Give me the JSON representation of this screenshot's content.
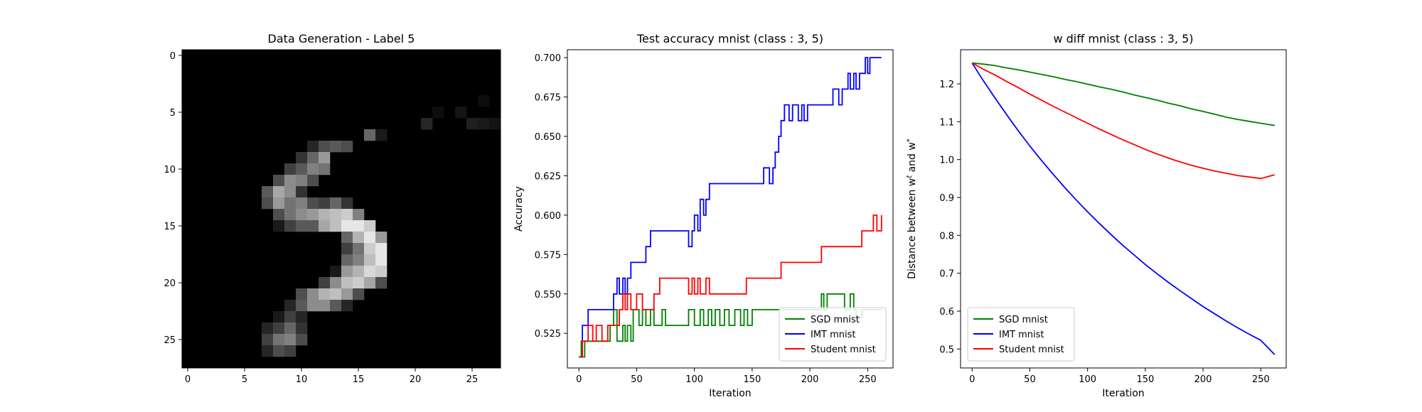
{
  "chart_data": [
    {
      "type": "heatmap",
      "title": "Data Generation - Label 5",
      "colormap": "gray",
      "rows": 28,
      "cols": 28,
      "xticks": [
        0,
        5,
        10,
        15,
        20,
        25
      ],
      "yticks": [
        0,
        5,
        10,
        15,
        20,
        25
      ],
      "pixels": [
        [
          6,
          21,
          0.15
        ],
        [
          5,
          24,
          0.08
        ],
        [
          6,
          25,
          0.12
        ],
        [
          6,
          26,
          0.1
        ],
        [
          6,
          27,
          0.08
        ],
        [
          4,
          26,
          0.05
        ],
        [
          5,
          22,
          0.05
        ],
        [
          7,
          16,
          0.4
        ],
        [
          7,
          17,
          0.1
        ],
        [
          8,
          11,
          0.15
        ],
        [
          8,
          12,
          0.3
        ],
        [
          8,
          13,
          0.35
        ],
        [
          8,
          14,
          0.3
        ],
        [
          9,
          10,
          0.2
        ],
        [
          9,
          11,
          0.4
        ],
        [
          9,
          12,
          0.6
        ],
        [
          10,
          9,
          0.25
        ],
        [
          10,
          10,
          0.35
        ],
        [
          10,
          11,
          0.5
        ],
        [
          10,
          12,
          0.45
        ],
        [
          11,
          8,
          0.3
        ],
        [
          11,
          9,
          0.55
        ],
        [
          11,
          10,
          0.5
        ],
        [
          11,
          11,
          0.3
        ],
        [
          12,
          7,
          0.35
        ],
        [
          12,
          8,
          0.65
        ],
        [
          12,
          9,
          0.55
        ],
        [
          12,
          10,
          0.2
        ],
        [
          13,
          7,
          0.3
        ],
        [
          13,
          8,
          0.6
        ],
        [
          13,
          9,
          0.45
        ],
        [
          13,
          10,
          0.5
        ],
        [
          13,
          11,
          0.3
        ],
        [
          13,
          12,
          0.25
        ],
        [
          13,
          13,
          0.4
        ],
        [
          13,
          14,
          0.2
        ],
        [
          14,
          8,
          0.3
        ],
        [
          14,
          9,
          0.45
        ],
        [
          14,
          10,
          0.55
        ],
        [
          14,
          11,
          0.6
        ],
        [
          14,
          12,
          0.7
        ],
        [
          14,
          13,
          0.75
        ],
        [
          14,
          14,
          0.8
        ],
        [
          14,
          15,
          0.5
        ],
        [
          15,
          8,
          0.1
        ],
        [
          15,
          9,
          0.25
        ],
        [
          15,
          10,
          0.35
        ],
        [
          15,
          11,
          0.35
        ],
        [
          15,
          12,
          0.65
        ],
        [
          15,
          13,
          0.75
        ],
        [
          15,
          14,
          0.9
        ],
        [
          15,
          15,
          0.9
        ],
        [
          15,
          16,
          0.8
        ],
        [
          16,
          14,
          0.4
        ],
        [
          16,
          15,
          0.7
        ],
        [
          16,
          16,
          0.9
        ],
        [
          16,
          17,
          0.6
        ],
        [
          17,
          14,
          0.25
        ],
        [
          17,
          15,
          0.45
        ],
        [
          17,
          16,
          0.8
        ],
        [
          17,
          17,
          0.9
        ],
        [
          18,
          14,
          0.4
        ],
        [
          18,
          15,
          0.5
        ],
        [
          18,
          16,
          0.75
        ],
        [
          18,
          17,
          0.9
        ],
        [
          19,
          13,
          0.1
        ],
        [
          19,
          14,
          0.6
        ],
        [
          19,
          15,
          0.7
        ],
        [
          19,
          16,
          0.85
        ],
        [
          19,
          17,
          0.8
        ],
        [
          20,
          12,
          0.25
        ],
        [
          20,
          13,
          0.55
        ],
        [
          20,
          14,
          0.75
        ],
        [
          20,
          15,
          0.8
        ],
        [
          20,
          16,
          0.65
        ],
        [
          20,
          17,
          0.3
        ],
        [
          21,
          10,
          0.3
        ],
        [
          21,
          11,
          0.55
        ],
        [
          21,
          12,
          0.7
        ],
        [
          21,
          13,
          0.75
        ],
        [
          21,
          14,
          0.6
        ],
        [
          21,
          15,
          0.3
        ],
        [
          22,
          9,
          0.15
        ],
        [
          22,
          10,
          0.35
        ],
        [
          22,
          11,
          0.55
        ],
        [
          22,
          12,
          0.55
        ],
        [
          22,
          13,
          0.35
        ],
        [
          22,
          14,
          0.15
        ],
        [
          23,
          8,
          0.1
        ],
        [
          23,
          9,
          0.25
        ],
        [
          23,
          10,
          0.15
        ],
        [
          24,
          7,
          0.15
        ],
        [
          24,
          8,
          0.25
        ],
        [
          24,
          9,
          0.4
        ],
        [
          24,
          10,
          0.2
        ],
        [
          25,
          7,
          0.25
        ],
        [
          25,
          8,
          0.45
        ],
        [
          25,
          9,
          0.5
        ],
        [
          25,
          10,
          0.3
        ],
        [
          26,
          7,
          0.15
        ],
        [
          26,
          8,
          0.3
        ],
        [
          26,
          9,
          0.25
        ]
      ]
    },
    {
      "type": "line",
      "title": "Test accuracy mnist (class : 3, 5)",
      "xlabel": "Iteration",
      "ylabel": "Accuracy",
      "xlim": [
        -10,
        272
      ],
      "ylim": [
        0.503,
        0.705
      ],
      "xticks": [
        0,
        50,
        100,
        150,
        200,
        250
      ],
      "yticks": [
        0.525,
        0.55,
        0.575,
        0.6,
        0.625,
        0.65,
        0.675,
        0.7
      ],
      "ytick_labels": [
        "0.525",
        "0.550",
        "0.575",
        "0.600",
        "0.625",
        "0.650",
        "0.675",
        "0.700"
      ],
      "legend": "lower-right",
      "series": [
        {
          "name": "SGD mnist",
          "color": "#008000",
          "step": true,
          "x": [
            0,
            2,
            3,
            5,
            10,
            20,
            27,
            30,
            33,
            38,
            40,
            42,
            45,
            47,
            52,
            55,
            58,
            62,
            65,
            70,
            72,
            75,
            80,
            90,
            95,
            100,
            105,
            108,
            112,
            115,
            118,
            122,
            126,
            130,
            135,
            140,
            143,
            146,
            150,
            160,
            165,
            170,
            175,
            180,
            190,
            200,
            210,
            212,
            215,
            225,
            230,
            235,
            238,
            240,
            245,
            247,
            250,
            262
          ],
          "y": [
            0.51,
            0.52,
            0.51,
            0.52,
            0.52,
            0.52,
            0.53,
            0.54,
            0.52,
            0.53,
            0.52,
            0.53,
            0.52,
            0.54,
            0.53,
            0.54,
            0.53,
            0.54,
            0.53,
            0.53,
            0.54,
            0.53,
            0.53,
            0.53,
            0.54,
            0.53,
            0.54,
            0.53,
            0.54,
            0.53,
            0.54,
            0.53,
            0.54,
            0.53,
            0.54,
            0.53,
            0.54,
            0.53,
            0.54,
            0.54,
            0.54,
            0.54,
            0.54,
            0.54,
            0.54,
            0.54,
            0.55,
            0.54,
            0.55,
            0.55,
            0.54,
            0.55,
            0.54,
            0.535,
            0.54,
            0.54,
            0.54,
            0.54
          ]
        },
        {
          "name": "IMT mnist",
          "color": "#0000ff",
          "step": true,
          "x": [
            0,
            3,
            8,
            15,
            25,
            30,
            33,
            35,
            38,
            40,
            42,
            45,
            50,
            55,
            58,
            62,
            65,
            70,
            80,
            90,
            95,
            98,
            100,
            103,
            105,
            108,
            110,
            113,
            115,
            120,
            130,
            140,
            145,
            160,
            165,
            168,
            170,
            173,
            175,
            178,
            180,
            182,
            185,
            190,
            193,
            195,
            198,
            200,
            210,
            220,
            225,
            228,
            230,
            233,
            235,
            238,
            240,
            243,
            245,
            248,
            250,
            252,
            255,
            262
          ],
          "y": [
            0.51,
            0.53,
            0.54,
            0.54,
            0.54,
            0.55,
            0.56,
            0.55,
            0.56,
            0.55,
            0.56,
            0.57,
            0.57,
            0.57,
            0.58,
            0.59,
            0.59,
            0.59,
            0.59,
            0.59,
            0.58,
            0.59,
            0.6,
            0.59,
            0.61,
            0.6,
            0.61,
            0.62,
            0.62,
            0.62,
            0.62,
            0.62,
            0.62,
            0.63,
            0.62,
            0.63,
            0.64,
            0.65,
            0.66,
            0.67,
            0.67,
            0.66,
            0.67,
            0.66,
            0.67,
            0.66,
            0.67,
            0.67,
            0.67,
            0.68,
            0.67,
            0.68,
            0.68,
            0.69,
            0.68,
            0.69,
            0.68,
            0.69,
            0.69,
            0.7,
            0.69,
            0.7,
            0.7,
            0.7
          ]
        },
        {
          "name": "Student mnist",
          "color": "#ff0000",
          "step": true,
          "x": [
            0,
            3,
            8,
            12,
            15,
            20,
            25,
            30,
            35,
            38,
            40,
            42,
            45,
            50,
            55,
            60,
            65,
            70,
            75,
            80,
            90,
            95,
            98,
            100,
            103,
            105,
            110,
            113,
            115,
            120,
            130,
            140,
            145,
            150,
            160,
            170,
            175,
            180,
            190,
            200,
            210,
            220,
            230,
            240,
            245,
            250,
            255,
            258,
            262
          ],
          "y": [
            0.51,
            0.52,
            0.53,
            0.52,
            0.53,
            0.52,
            0.53,
            0.53,
            0.54,
            0.55,
            0.54,
            0.55,
            0.54,
            0.55,
            0.54,
            0.54,
            0.55,
            0.56,
            0.56,
            0.56,
            0.56,
            0.55,
            0.56,
            0.55,
            0.56,
            0.55,
            0.56,
            0.55,
            0.55,
            0.55,
            0.55,
            0.55,
            0.56,
            0.56,
            0.56,
            0.56,
            0.57,
            0.57,
            0.57,
            0.57,
            0.58,
            0.58,
            0.58,
            0.58,
            0.59,
            0.59,
            0.6,
            0.59,
            0.6
          ]
        }
      ]
    },
    {
      "type": "line",
      "title": "w diff mnist (class : 3, 5)",
      "xlabel": "Iteration",
      "ylabel": "Distance between w^t and w^*",
      "xlim": [
        -10,
        272
      ],
      "ylim": [
        0.45,
        1.29
      ],
      "xticks": [
        0,
        50,
        100,
        150,
        200,
        250
      ],
      "yticks": [
        0.5,
        0.6,
        0.7,
        0.8,
        0.9,
        1.0,
        1.1,
        1.2
      ],
      "ytick_labels": [
        "0.5",
        "0.6",
        "0.7",
        "0.8",
        "0.9",
        "1.0",
        "1.1",
        "1.2"
      ],
      "legend": "lower-left",
      "series": [
        {
          "name": "SGD mnist",
          "color": "#008000",
          "x": [
            0,
            10,
            20,
            30,
            40,
            50,
            60,
            70,
            80,
            90,
            100,
            110,
            120,
            130,
            140,
            150,
            160,
            170,
            180,
            190,
            200,
            210,
            220,
            230,
            240,
            250,
            262
          ],
          "y": [
            1.255,
            1.252,
            1.248,
            1.242,
            1.237,
            1.231,
            1.225,
            1.219,
            1.212,
            1.206,
            1.199,
            1.192,
            1.186,
            1.179,
            1.171,
            1.164,
            1.157,
            1.149,
            1.142,
            1.134,
            1.127,
            1.12,
            1.112,
            1.106,
            1.101,
            1.096,
            1.09
          ]
        },
        {
          "name": "IMT mnist",
          "color": "#0000ff",
          "x": [
            0,
            10,
            20,
            30,
            40,
            50,
            60,
            70,
            80,
            90,
            100,
            110,
            120,
            130,
            140,
            150,
            160,
            170,
            180,
            190,
            200,
            210,
            220,
            230,
            240,
            250,
            262
          ],
          "y": [
            1.255,
            1.207,
            1.162,
            1.118,
            1.076,
            1.036,
            0.998,
            0.962,
            0.927,
            0.894,
            0.862,
            0.832,
            0.803,
            0.775,
            0.749,
            0.723,
            0.699,
            0.676,
            0.654,
            0.633,
            0.612,
            0.593,
            0.574,
            0.556,
            0.539,
            0.523,
            0.485
          ]
        },
        {
          "name": "Student mnist",
          "color": "#ff0000",
          "x": [
            0,
            10,
            20,
            30,
            40,
            50,
            60,
            70,
            80,
            90,
            100,
            110,
            120,
            130,
            140,
            150,
            160,
            170,
            180,
            190,
            200,
            210,
            220,
            230,
            240,
            250,
            262
          ],
          "y": [
            1.255,
            1.238,
            1.223,
            1.206,
            1.19,
            1.173,
            1.157,
            1.141,
            1.126,
            1.111,
            1.096,
            1.081,
            1.067,
            1.053,
            1.04,
            1.027,
            1.015,
            1.004,
            0.994,
            0.985,
            0.977,
            0.97,
            0.964,
            0.958,
            0.954,
            0.95,
            0.96
          ]
        }
      ]
    }
  ]
}
